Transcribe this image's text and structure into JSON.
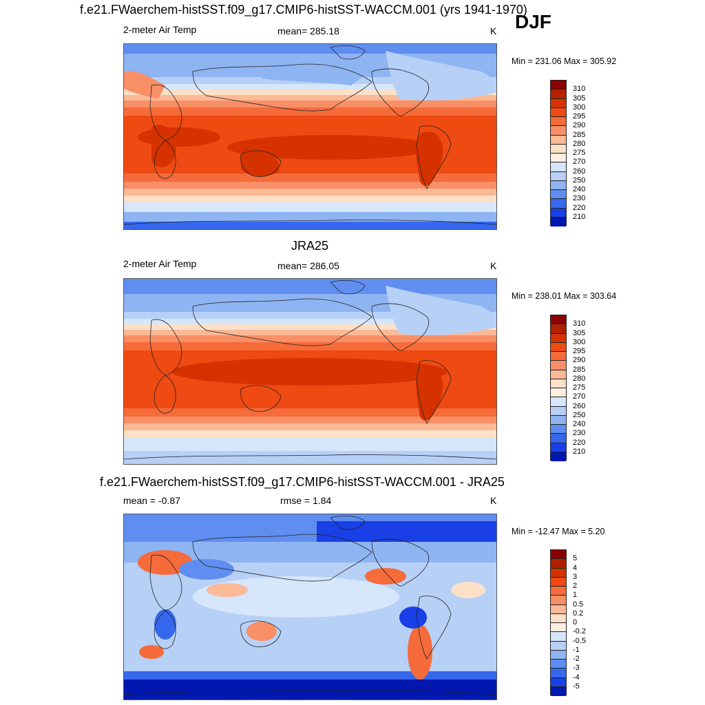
{
  "header": {
    "title_top": "f.e21.FWaerchem-histSST.f09_g17.CMIP6-histSST-WACCM.001 (yrs 1941-1970)",
    "season": "DJF"
  },
  "panels": [
    {
      "variable": "2-meter Air Temp",
      "stat1": "mean= 285.18",
      "units": "K",
      "minmax": "Min = 231.06 Max = 305.92",
      "colorbar": {
        "labels": [
          "310",
          "305",
          "300",
          "295",
          "290",
          "285",
          "280",
          "275",
          "270",
          "260",
          "250",
          "240",
          "230",
          "220",
          "210"
        ],
        "colors": [
          "#8b0000",
          "#b22000",
          "#d63200",
          "#ee4a12",
          "#f56b3a",
          "#f98f66",
          "#fbb996",
          "#fde0c8",
          "#ffefe0",
          "#d6e6fb",
          "#b7d0f6",
          "#8fb4f2",
          "#5f8ef0",
          "#3668ee",
          "#1840e6",
          "#0018b0"
        ]
      }
    },
    {
      "subtitle": "JRA25",
      "variable": "2-meter Air Temp",
      "stat1": "mean= 286.05",
      "units": "K",
      "minmax": "Min = 238.01 Max = 303.64",
      "colorbar": {
        "labels": [
          "310",
          "305",
          "300",
          "295",
          "290",
          "285",
          "280",
          "275",
          "270",
          "260",
          "250",
          "240",
          "230",
          "220",
          "210"
        ],
        "colors": [
          "#8b0000",
          "#b22000",
          "#d63200",
          "#ee4a12",
          "#f56b3a",
          "#f98f66",
          "#fbb996",
          "#fde0c8",
          "#ffefe0",
          "#d6e6fb",
          "#b7d0f6",
          "#8fb4f2",
          "#5f8ef0",
          "#3668ee",
          "#1840e6",
          "#0018b0"
        ]
      }
    },
    {
      "subtitle": "f.e21.FWaerchem-histSST.f09_g17.CMIP6-histSST-WACCM.001 - JRA25",
      "stat1": "mean =  -0.87",
      "stat2": "rmse =   1.84",
      "units": "K",
      "minmax": "Min = -12.47 Max =   5.20",
      "colorbar": {
        "labels": [
          "5",
          "4",
          "3",
          "2",
          "1",
          "0.5",
          "0.2",
          "0",
          "-0.2",
          "-0.5",
          "-1",
          "-2",
          "-3",
          "-4",
          "-5"
        ],
        "colors": [
          "#8b0000",
          "#b22000",
          "#d63200",
          "#ee4a12",
          "#f56b3a",
          "#f98f66",
          "#fbb996",
          "#fde0c8",
          "#ffefe0",
          "#d6e6fb",
          "#b7d0f6",
          "#8fb4f2",
          "#5f8ef0",
          "#3668ee",
          "#1840e6",
          "#0018b0"
        ]
      }
    }
  ]
}
